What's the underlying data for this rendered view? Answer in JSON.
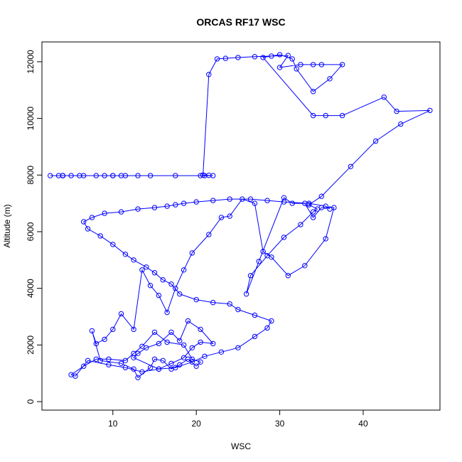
{
  "chart_data": {
    "type": "line",
    "title": "ORCAS RF17 WSC",
    "xlabel": "WSC",
    "ylabel": "Altitude (m)",
    "xlim": [
      1.5,
      49.2
    ],
    "ylim": [
      -300,
      12700
    ],
    "x_ticks": [
      10,
      20,
      30,
      40
    ],
    "y_ticks": [
      0,
      2000,
      4000,
      6000,
      8000,
      10000,
      12000
    ],
    "x_tick_labels": [
      "10",
      "20",
      "30",
      "40"
    ],
    "y_tick_labels": [
      "0",
      "2000",
      "4000",
      "6000",
      "8000",
      "10000",
      "12000"
    ],
    "grid": false,
    "legend": "none",
    "color": "#0000ff",
    "marker": "open-circle",
    "series": [
      {
        "x": [
          3.5,
          4.0,
          6.0,
          10.0,
          11.5,
          10.0,
          9.0,
          6.5,
          4.0,
          2.5,
          4.0,
          5.0,
          8.0,
          11.0,
          13.0,
          14.5,
          17.5,
          20.5,
          21.0,
          22.0,
          21.5,
          20.8,
          21.5,
          22.5,
          23.5,
          25.0,
          27.0,
          29.0,
          31.0,
          30.0,
          32.5,
          34.0,
          35.0,
          37.5,
          36.0,
          34.0,
          32.0,
          31.5,
          30.0,
          28.0,
          34.0,
          35.5,
          37.5,
          42.5,
          44.0,
          48.0,
          44.5,
          41.5,
          38.5,
          35.0,
          33.5,
          34.5,
          34.0,
          32.5,
          30.5,
          28.5,
          26.5,
          26.0,
          27.5,
          30.5,
          31.5,
          33.0,
          34.0,
          35.0,
          36.5,
          35.5,
          33.0,
          31.0,
          29.0,
          28.0,
          27.0,
          25.5,
          24.0,
          23.0,
          21.5,
          19.5,
          18.5,
          17.5,
          16.5,
          15.5,
          14.5,
          13.5,
          12.5,
          11.0,
          10.0,
          9.0,
          8.0,
          7.5,
          8.5,
          11.0,
          12.5,
          13.0,
          14.5,
          15.0,
          16.0,
          17.0,
          18.0,
          19.0,
          20.0,
          20.5,
          19.5,
          18.5,
          16.5,
          15.0,
          13.5,
          12.5,
          11.5,
          9.5,
          8.0,
          6.5,
          5.0,
          5.5,
          7.0,
          9.5,
          11.5,
          13.5,
          15.5,
          17.0,
          18.5,
          19.5,
          20.5,
          22.0,
          20.5,
          19.0,
          18.0,
          17.0,
          15.5,
          14.0,
          13.0,
          12.5,
          15.5,
          17.5,
          19.5,
          21.0,
          23.0,
          25.0,
          27.0,
          28.5,
          29.0,
          27.0,
          25.0,
          24.0,
          22.0,
          20.0,
          18.0,
          17.0,
          16.0,
          15.0,
          14.0,
          12.5,
          11.5,
          10.0,
          8.5,
          7.0,
          6.5,
          7.5,
          9.0,
          11.0,
          13.0,
          15.0,
          16.5,
          17.5,
          18.5,
          20.0,
          22.0,
          24.0,
          26.5,
          28.5,
          30.5,
          33.5,
          35.5,
          36.0
        ],
        "y": [
          7980,
          7980,
          7980,
          7980,
          7980,
          7980,
          7980,
          7980,
          7980,
          7980,
          7980,
          7980,
          7980,
          7980,
          7980,
          7980,
          7980,
          7980,
          7980,
          7980,
          7990,
          8000,
          11550,
          12100,
          12120,
          12150,
          12180,
          12200,
          12220,
          11800,
          11900,
          11900,
          11900,
          11900,
          11400,
          10950,
          11750,
          12100,
          12250,
          12150,
          10100,
          10100,
          10100,
          10750,
          10250,
          10280,
          9800,
          9200,
          8300,
          7250,
          6950,
          6800,
          6700,
          6250,
          5800,
          5150,
          4450,
          3800,
          4950,
          7200,
          7000,
          7000,
          6500,
          6850,
          6850,
          5750,
          4800,
          4450,
          5100,
          5300,
          7000,
          7150,
          6550,
          6500,
          5900,
          5250,
          4650,
          4000,
          3150,
          3750,
          4100,
          4650,
          2550,
          3100,
          2550,
          2200,
          2050,
          2500,
          1450,
          1350,
          1150,
          850,
          1200,
          1500,
          1450,
          1150,
          1300,
          1500,
          1250,
          1400,
          1500,
          2000,
          2100,
          2450,
          1950,
          1700,
          1450,
          1500,
          1500,
          1250,
          950,
          900,
          1450,
          1300,
          1200,
          1050,
          1150,
          1350,
          1550,
          1900,
          2100,
          2050,
          2550,
          2850,
          2150,
          2450,
          2050,
          1900,
          1700,
          1550,
          1150,
          1200,
          1400,
          1600,
          1750,
          1900,
          2300,
          2600,
          2850,
          3050,
          3250,
          3450,
          3500,
          3600,
          3800,
          4150,
          4300,
          4550,
          4750,
          5000,
          5200,
          5550,
          5850,
          6100,
          6350,
          6500,
          6650,
          6700,
          6800,
          6850,
          6900,
          6950,
          7000,
          7050,
          7100,
          7150,
          7150,
          7100,
          7050,
          7000,
          6900,
          6800
        ]
      }
    ]
  }
}
